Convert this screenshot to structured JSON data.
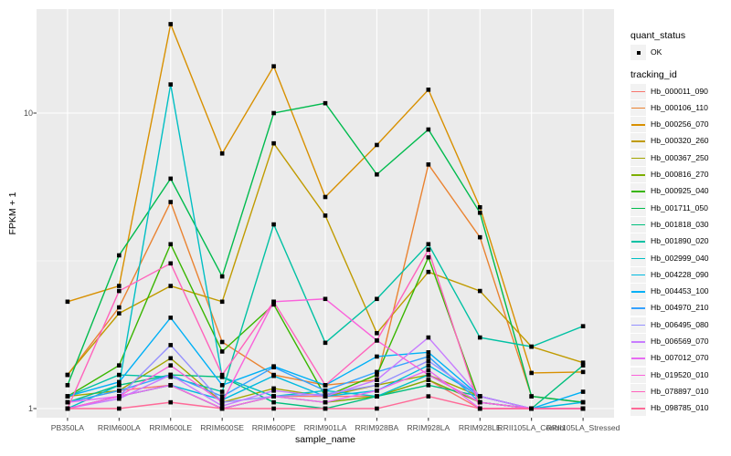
{
  "figure_title": "",
  "axes": {
    "y_title": "FPKM + 1",
    "x_title": "sample_name"
  },
  "legend": {
    "quant_status": {
      "title": "quant_status",
      "items": [
        {
          "label": "OK"
        }
      ]
    },
    "tracking_id_title": "tracking_id"
  },
  "chart_data": {
    "type": "line",
    "title": "",
    "xlabel": "sample_name",
    "ylabel": "FPKM + 1",
    "y_scale": "log10",
    "ylim": [
      0.93,
      22.5
    ],
    "y_ticks": [
      1,
      10
    ],
    "y_minor_ticks": [
      3.1623
    ],
    "grid": true,
    "legend_position": "right",
    "point_shape": "filled-black-square",
    "quant_status": "OK",
    "categories": [
      "PB350LA",
      "RRIM600LA",
      "RRIM600LE",
      "RRIM600SE",
      "RRIM600PE",
      "RRIM901LA",
      "RRIM928BA",
      "RRIM928LA",
      "RRIM928LE",
      "RRII105LA_Control",
      "RRII105LA_Stressed"
    ],
    "series": [
      {
        "name": "Hb_000011_090",
        "color": "#F8766D",
        "values": [
          1.05,
          1.15,
          1.2,
          1.0,
          1.1,
          1.1,
          1.1,
          1.25,
          1.0,
          1.0,
          1.0
        ]
      },
      {
        "name": "Hb_000106_110",
        "color": "#EA8331",
        "values": [
          1.3,
          2.2,
          5.0,
          1.68,
          1.3,
          1.2,
          1.25,
          6.7,
          3.8,
          1.1,
          1.05
        ]
      },
      {
        "name": "Hb_000256_070",
        "color": "#D89000",
        "values": [
          2.3,
          2.6,
          20.0,
          7.3,
          14.4,
          5.2,
          7.8,
          12.0,
          4.8,
          1.32,
          1.33
        ]
      },
      {
        "name": "Hb_000320_260",
        "color": "#C09B00",
        "values": [
          1.3,
          2.1,
          2.6,
          2.3,
          7.9,
          4.5,
          1.8,
          2.9,
          2.5,
          1.62,
          1.43
        ]
      },
      {
        "name": "Hb_000367_250",
        "color": "#A3A500",
        "values": [
          1.1,
          1.15,
          1.48,
          1.05,
          1.17,
          1.1,
          1.2,
          1.3,
          1.1,
          1.0,
          1.0
        ]
      },
      {
        "name": "Hb_000816_270",
        "color": "#7CAE00",
        "values": [
          1.0,
          1.1,
          1.2,
          1.0,
          1.1,
          1.05,
          1.1,
          1.25,
          1.05,
          1.0,
          1.0
        ]
      },
      {
        "name": "Hb_000925_040",
        "color": "#39B600",
        "values": [
          1.1,
          1.4,
          3.6,
          1.56,
          2.25,
          1.1,
          1.3,
          3.25,
          1.05,
          1.0,
          1.0
        ]
      },
      {
        "name": "Hb_001711_050",
        "color": "#00BB4E",
        "values": [
          1.2,
          3.3,
          6.0,
          2.8,
          10.0,
          10.8,
          6.2,
          8.8,
          4.6,
          1.1,
          1.05
        ]
      },
      {
        "name": "Hb_001818_030",
        "color": "#00BF7D",
        "values": [
          1.05,
          1.2,
          1.3,
          1.28,
          1.05,
          1.0,
          1.1,
          1.2,
          1.1,
          1.0,
          1.4
        ]
      },
      {
        "name": "Hb_001890_020",
        "color": "#00C1A3",
        "values": [
          1.1,
          1.3,
          1.28,
          1.14,
          4.2,
          1.67,
          2.35,
          3.6,
          1.74,
          1.62,
          1.9
        ]
      },
      {
        "name": "Hb_002999_040",
        "color": "#00BFC4",
        "values": [
          1.0,
          1.2,
          12.5,
          1.28,
          1.1,
          1.15,
          1.1,
          1.3,
          1.05,
          1.0,
          1.0
        ]
      },
      {
        "name": "Hb_004228_090",
        "color": "#00BAE0",
        "values": [
          1.0,
          1.1,
          1.2,
          1.07,
          1.29,
          1.1,
          1.15,
          1.4,
          1.1,
          1.0,
          1.05
        ]
      },
      {
        "name": "Hb_004453_100",
        "color": "#00B0F6",
        "values": [
          1.1,
          1.23,
          2.03,
          1.2,
          1.39,
          1.2,
          1.5,
          1.55,
          1.1,
          1.0,
          1.14
        ]
      },
      {
        "name": "Hb_004970_210",
        "color": "#35A2FF",
        "values": [
          1.05,
          1.15,
          1.3,
          1.1,
          1.38,
          1.15,
          1.33,
          1.5,
          1.05,
          1.0,
          1.0
        ]
      },
      {
        "name": "Hb_006495_080",
        "color": "#9590FF",
        "values": [
          1.0,
          1.1,
          1.64,
          1.05,
          1.1,
          1.12,
          1.2,
          1.45,
          1.1,
          1.0,
          1.0
        ]
      },
      {
        "name": "Hb_006569_070",
        "color": "#C77CFF",
        "values": [
          1.0,
          1.08,
          1.3,
          1.02,
          1.15,
          1.1,
          1.25,
          1.74,
          1.1,
          1.0,
          1.0
        ]
      },
      {
        "name": "Hb_007012_070",
        "color": "#E76BF3",
        "values": [
          1.05,
          1.1,
          1.2,
          1.0,
          1.1,
          1.05,
          1.15,
          1.35,
          1.0,
          1.0,
          1.0
        ]
      },
      {
        "name": "Hb_019520_010",
        "color": "#FA62DB",
        "values": [
          1.0,
          1.1,
          1.4,
          1.05,
          2.3,
          2.35,
          1.7,
          1.3,
          1.05,
          1.0,
          1.0
        ]
      },
      {
        "name": "Hb_078897_010",
        "color": "#FF62BC",
        "values": [
          1.0,
          2.5,
          3.1,
          1.3,
          2.3,
          1.2,
          1.7,
          3.45,
          1.0,
          1.0,
          1.0
        ]
      },
      {
        "name": "Hb_098785_010",
        "color": "#FF6A98",
        "values": [
          1.0,
          1.0,
          1.05,
          1.0,
          1.0,
          1.0,
          1.0,
          1.1,
          1.0,
          1.0,
          1.0
        ]
      }
    ],
    "style": {
      "panel_bg": "#EBEBEB",
      "grid_color": "#FFFFFF",
      "key_bg": "#F2F2F2",
      "point_color": "#000000",
      "tick_text_color": "#4D4D4D",
      "tick_mark_color": "#333333"
    }
  }
}
